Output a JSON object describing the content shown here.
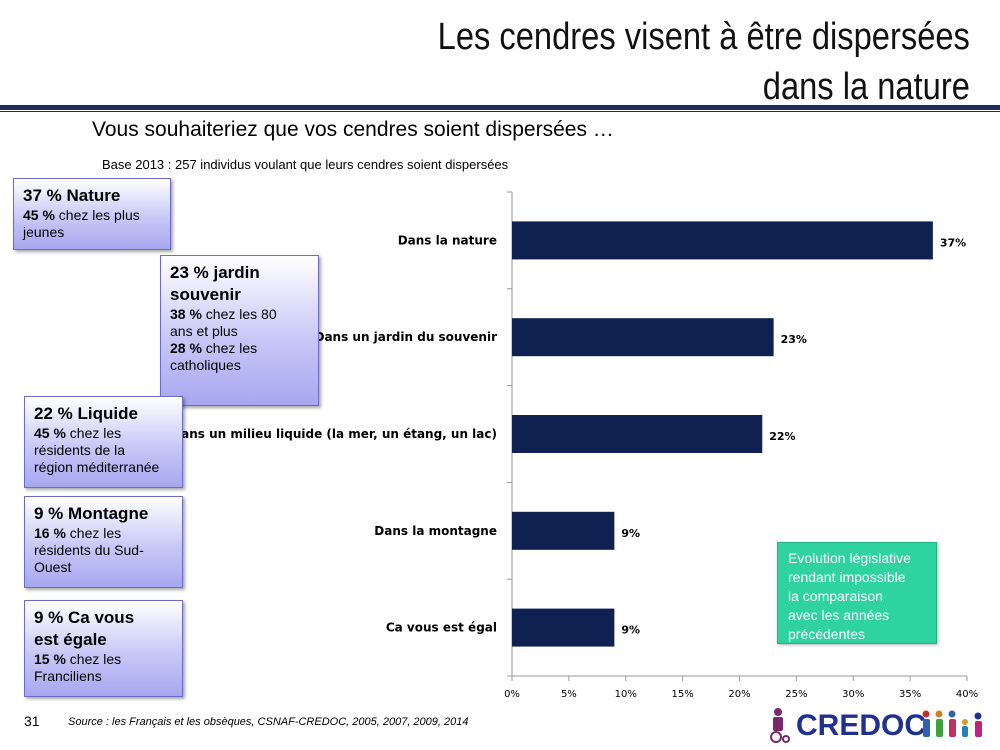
{
  "title": {
    "line1": "Les cendres visent à être dispersées",
    "line2": "dans la nature"
  },
  "question": "Vous souhaiteriez que vos cendres soient dispersées …",
  "base": "Base 2013 : 257 individus voulant que leurs cendres soient dispersées",
  "boxes": [
    {
      "head": "37 % Nature",
      "lines": [
        {
          "pct": "45 %",
          "text": " chez les plus"
        },
        {
          "pct": "",
          "text": "jeunes"
        }
      ]
    },
    {
      "head1": "23 %  jardin",
      "head2": "souvenir",
      "lines": [
        {
          "pct": "38 %",
          "text": " chez les 80"
        },
        {
          "pct": "",
          "text": "ans et plus"
        },
        {
          "pct": "28 %",
          "text": " chez les"
        },
        {
          "pct": "",
          "text": "catholiques"
        }
      ]
    },
    {
      "head": "22 % Liquide",
      "lines": [
        {
          "pct": "45 %",
          "text": " chez les"
        },
        {
          "pct": "",
          "text": "résidents de la"
        },
        {
          "pct": "",
          "text": "région méditerranée"
        }
      ]
    },
    {
      "head": "9 % Montagne",
      "lines": [
        {
          "pct": "16 %",
          "text": " chez les"
        },
        {
          "pct": "",
          "text": "résidents du Sud-"
        },
        {
          "pct": "",
          "text": "Ouest"
        }
      ]
    },
    {
      "head1": "9 % Ca vous",
      "head2": "est égale",
      "lines": [
        {
          "pct": "15 %",
          "text": " chez les"
        },
        {
          "pct": "",
          "text": "Franciliens"
        }
      ]
    }
  ],
  "note": {
    "lines": [
      "Evolution législative",
      "rendant impossible",
      "la comparaison",
      "avec les années",
      "précédentes"
    ]
  },
  "footer": {
    "page": "31",
    "source": "Source : les Français et les obsèques, CSNAF-CREDOC, 2005, 2007, 2009, 2014"
  },
  "logo": {
    "text": "CREDOC"
  },
  "colors": {
    "bar": "#102050",
    "accent": "#1f2c5c",
    "note": "#2ed3a0"
  },
  "chart_data": {
    "type": "bar",
    "orientation": "horizontal",
    "categories": [
      "Dans la nature",
      "Dans un jardin du souvenir",
      "Dans un milieu liquide (la mer, un étang, un lac)",
      "Dans la montagne",
      "Ca vous est égal"
    ],
    "values": [
      37,
      23,
      22,
      9,
      9
    ],
    "value_labels": [
      "37%",
      "23%",
      "22%",
      "9%",
      "9%"
    ],
    "xlim": [
      0,
      40
    ],
    "xticks": [
      "0%",
      "5%",
      "10%",
      "15%",
      "20%",
      "25%",
      "30%",
      "35%",
      "40%"
    ],
    "grid": false,
    "legend": "none"
  }
}
